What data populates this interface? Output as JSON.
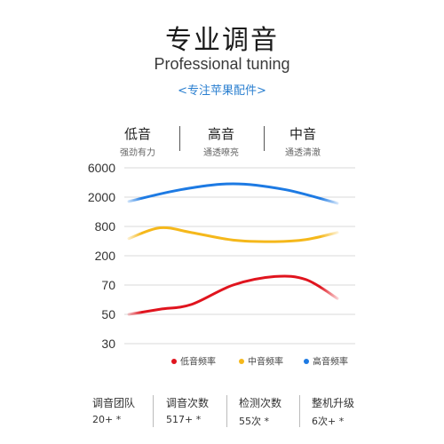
{
  "header": {
    "title": "专业调音",
    "subtitle": "Professional tuning",
    "tagline": "<专注苹果配件>"
  },
  "bands": [
    {
      "name": "低音",
      "desc": "强劲有力"
    },
    {
      "name": "高音",
      "desc": "通透嘹亮"
    },
    {
      "name": "中音",
      "desc": "通透清澈"
    }
  ],
  "chart_data": {
    "type": "line",
    "y_ticks": [
      "6000",
      "2000",
      "800",
      "200",
      "70",
      "50",
      "30"
    ],
    "grid": "horizontal",
    "legend_placement": "bottom-right",
    "series": [
      {
        "name": "低音频率",
        "color": "#e0141e",
        "points": [
          [
            0,
            50
          ],
          [
            0.15,
            53
          ],
          [
            0.3,
            56
          ],
          [
            0.5,
            70
          ],
          [
            0.7,
            95
          ],
          [
            0.85,
            85
          ],
          [
            1.0,
            60
          ]
        ]
      },
      {
        "name": "中音频率",
        "color": "#f5b81b",
        "points": [
          [
            0,
            450
          ],
          [
            0.15,
            750
          ],
          [
            0.3,
            600
          ],
          [
            0.5,
            420
          ],
          [
            0.7,
            390
          ],
          [
            0.85,
            430
          ],
          [
            1.0,
            600
          ]
        ]
      },
      {
        "name": "高音频率",
        "color": "#1d7ae3",
        "points": [
          [
            0,
            1750
          ],
          [
            0.25,
            2650
          ],
          [
            0.5,
            3300
          ],
          [
            0.75,
            2650
          ],
          [
            1.0,
            1650
          ]
        ]
      }
    ]
  },
  "footer": [
    {
      "label": "调音团队",
      "value": "20+",
      "suffix": " *"
    },
    {
      "label": "调音次数",
      "value": "517+",
      "suffix": " *"
    },
    {
      "label": "检测次数",
      "value": "55次",
      "suffix": " *"
    },
    {
      "label": "整机升级",
      "value": "6次+",
      "suffix": " *"
    }
  ]
}
